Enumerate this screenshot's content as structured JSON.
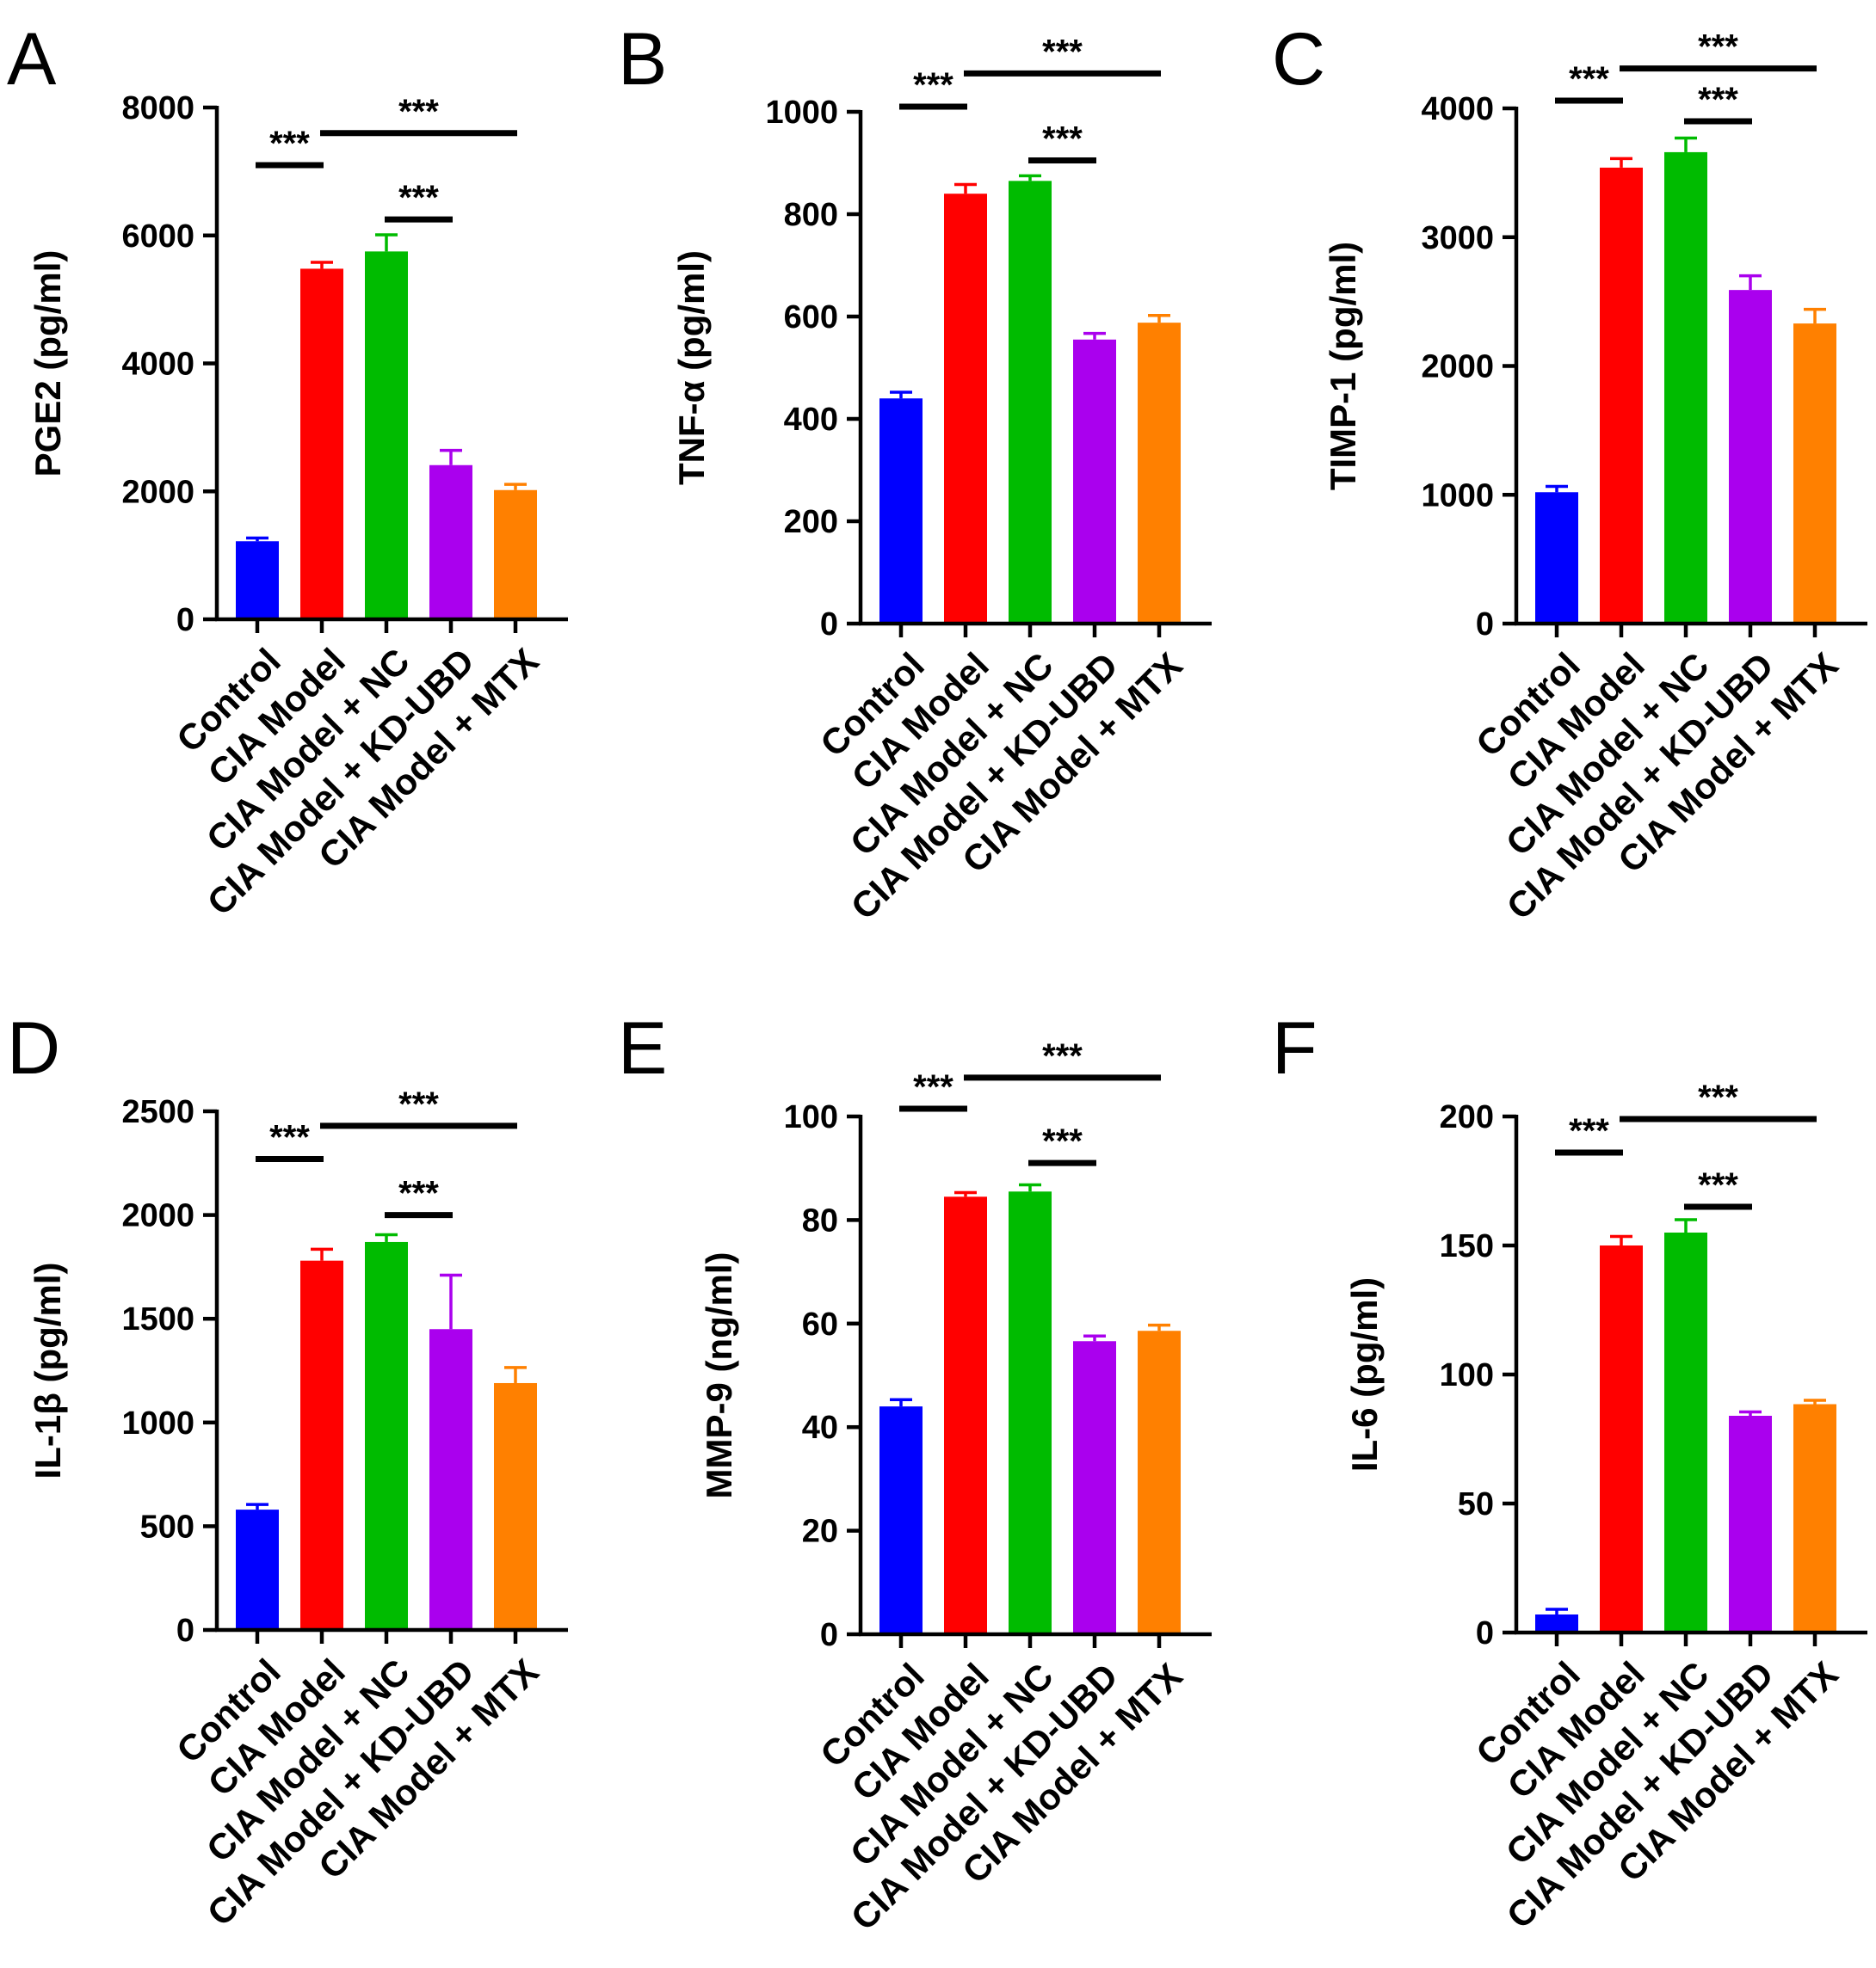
{
  "chart_data": [
    {
      "type": "bar",
      "panel": "A",
      "ylabel": "PGE2 (pg/ml)",
      "categories": [
        "Control",
        "CIA Model",
        "CIA Model + NC",
        "CIA Model + KD-UBD",
        "CIA Model + MTX"
      ],
      "values": [
        1220,
        5480,
        5750,
        2410,
        2020
      ],
      "errors": [
        50,
        100,
        260,
        230,
        90
      ],
      "ylim": [
        0,
        8000
      ],
      "yticks": [
        "0",
        "2000",
        "4000",
        "6000",
        "8000"
      ],
      "colors": [
        "#0000ff",
        "#ff0000",
        "#00bb00",
        "#aa00ee",
        "#ff8000"
      ],
      "significance": [
        {
          "from": 0,
          "to": 1,
          "y": 7100,
          "label": "***"
        },
        {
          "from": 1,
          "to": 4,
          "y": 7600,
          "label": "***"
        },
        {
          "from": 2,
          "to": 3,
          "y": 6250,
          "label": "***"
        }
      ]
    },
    {
      "type": "bar",
      "panel": "B",
      "ylabel": "TNF-α (pg/ml)",
      "categories": [
        "Control",
        "CIA Model",
        "CIA Model + NC",
        "CIA Model + KD-UBD",
        "CIA Model + MTX"
      ],
      "values": [
        440,
        840,
        865,
        555,
        588
      ],
      "errors": [
        12,
        18,
        10,
        12,
        14
      ],
      "ylim": [
        0,
        1000
      ],
      "yticks": [
        "0",
        "200",
        "400",
        "600",
        "800",
        "1000"
      ],
      "colors": [
        "#0000ff",
        "#ff0000",
        "#00bb00",
        "#aa00ee",
        "#ff8000"
      ],
      "significance": [
        {
          "from": 0,
          "to": 1,
          "y": 1010,
          "label": "***"
        },
        {
          "from": 1,
          "to": 4,
          "y": 1075,
          "label": "***"
        },
        {
          "from": 2,
          "to": 3,
          "y": 905,
          "label": "***"
        }
      ]
    },
    {
      "type": "bar",
      "panel": "C",
      "ylabel": "TIMP-1 (pg/ml)",
      "categories": [
        "Control",
        "CIA Model",
        "CIA Model + NC",
        "CIA Model + KD-UBD",
        "CIA Model + MTX"
      ],
      "values": [
        1020,
        3540,
        3660,
        2590,
        2330
      ],
      "errors": [
        45,
        70,
        110,
        110,
        110
      ],
      "ylim": [
        0,
        4000
      ],
      "yticks": [
        "0",
        "1000",
        "2000",
        "3000",
        "4000"
      ],
      "colors": [
        "#0000ff",
        "#ff0000",
        "#00bb00",
        "#aa00ee",
        "#ff8000"
      ],
      "significance": [
        {
          "from": 0,
          "to": 1,
          "y": 4060,
          "label": "***"
        },
        {
          "from": 1,
          "to": 4,
          "y": 4310,
          "label": "***"
        },
        {
          "from": 2,
          "to": 3,
          "y": 3900,
          "label": "***"
        }
      ]
    },
    {
      "type": "bar",
      "panel": "D",
      "ylabel": "IL-1β (pg/ml)",
      "categories": [
        "Control",
        "CIA Model",
        "CIA Model + NC",
        "CIA Model + KD-UBD",
        "CIA Model + MTX"
      ],
      "values": [
        580,
        1780,
        1870,
        1450,
        1190
      ],
      "errors": [
        25,
        55,
        35,
        260,
        75
      ],
      "ylim": [
        0,
        2500
      ],
      "yticks": [
        "0",
        "500",
        "1000",
        "1500",
        "2000",
        "2500"
      ],
      "colors": [
        "#0000ff",
        "#ff0000",
        "#00bb00",
        "#aa00ee",
        "#ff8000"
      ],
      "significance": [
        {
          "from": 0,
          "to": 1,
          "y": 2270,
          "label": "***"
        },
        {
          "from": 1,
          "to": 4,
          "y": 2430,
          "label": "***"
        },
        {
          "from": 2,
          "to": 3,
          "y": 2000,
          "label": "***"
        }
      ]
    },
    {
      "type": "bar",
      "panel": "E",
      "ylabel": "MMP-9 (ng/ml)",
      "categories": [
        "Control",
        "CIA Model",
        "CIA Model + NC",
        "CIA Model + KD-UBD",
        "CIA Model + MTX"
      ],
      "values": [
        44,
        84.5,
        85.5,
        56.6,
        58.6
      ],
      "errors": [
        1.3,
        0.8,
        1.3,
        1.0,
        1.1
      ],
      "ylim": [
        0,
        100
      ],
      "yticks": [
        "0",
        "20",
        "40",
        "60",
        "80",
        "100"
      ],
      "colors": [
        "#0000ff",
        "#ff0000",
        "#00bb00",
        "#aa00ee",
        "#ff8000"
      ],
      "significance": [
        {
          "from": 0,
          "to": 1,
          "y": 101.5,
          "label": "***"
        },
        {
          "from": 1,
          "to": 4,
          "y": 107.5,
          "label": "***"
        },
        {
          "from": 2,
          "to": 3,
          "y": 91,
          "label": "***"
        }
      ]
    },
    {
      "type": "bar",
      "panel": "F",
      "ylabel": "IL-6 (pg/ml)",
      "categories": [
        "Control",
        "CIA Model",
        "CIA Model + NC",
        "CIA Model + KD-UBD",
        "CIA Model + MTX"
      ],
      "values": [
        7,
        150,
        155,
        84,
        88.5
      ],
      "errors": [
        2,
        3.5,
        5,
        1.5,
        1.5
      ],
      "ylim": [
        0,
        200
      ],
      "yticks": [
        "0",
        "50",
        "100",
        "150",
        "200"
      ],
      "colors": [
        "#0000ff",
        "#ff0000",
        "#00bb00",
        "#aa00ee",
        "#ff8000"
      ],
      "significance": [
        {
          "from": 0,
          "to": 1,
          "y": 186,
          "label": "***"
        },
        {
          "from": 1,
          "to": 4,
          "y": 199,
          "label": "***"
        },
        {
          "from": 2,
          "to": 3,
          "y": 165,
          "label": "***"
        }
      ]
    }
  ]
}
